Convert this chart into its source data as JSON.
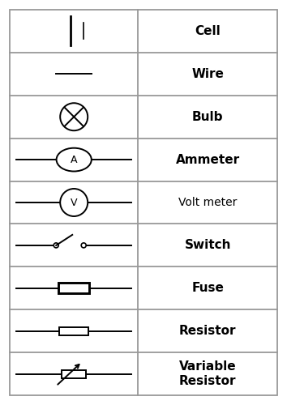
{
  "figsize": [
    3.54,
    5.0
  ],
  "dpi": 100,
  "bg_color": "#ffffff",
  "border_color": "#999999",
  "line_color": "#000000",
  "rows": 9,
  "col_split": 0.48,
  "labels": [
    "Cell",
    "Wire",
    "Bulb",
    "Ammeter",
    "Volt meter",
    "Switch",
    "Fuse",
    "Resistor",
    "Variable\nResistor"
  ],
  "label_bold": [
    true,
    true,
    true,
    true,
    false,
    true,
    true,
    true,
    true
  ],
  "label_fontsize": [
    11,
    11,
    11,
    11,
    10,
    11,
    11,
    11,
    11
  ]
}
